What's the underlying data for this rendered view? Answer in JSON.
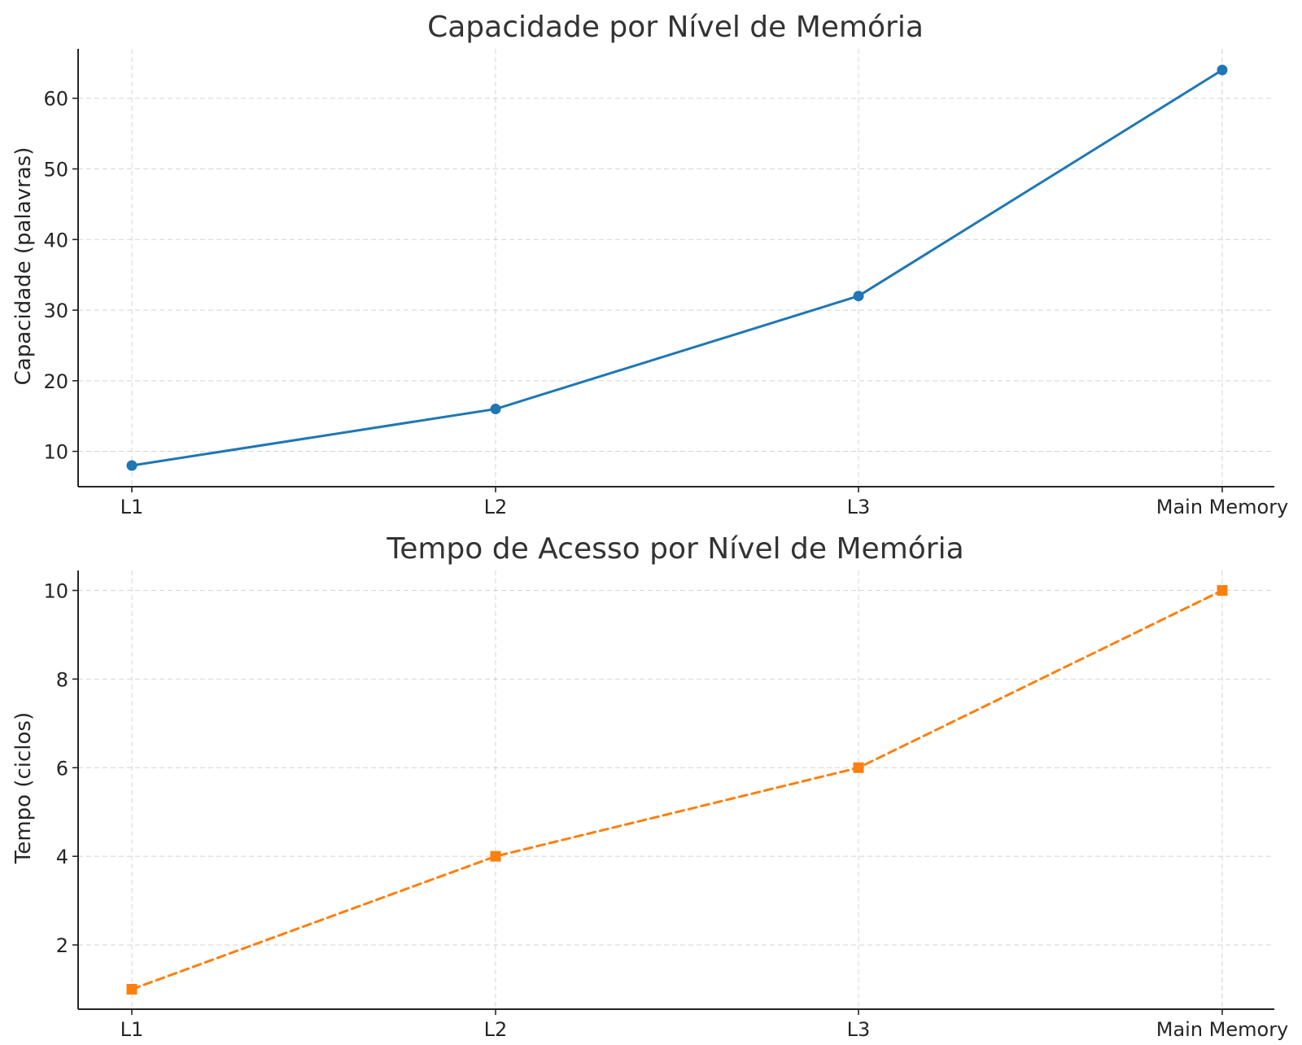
{
  "chart_data": [
    {
      "type": "line",
      "title": "Capacidade por Nível de Memória",
      "xlabel": "",
      "ylabel": "Capacidade (palavras)",
      "categories": [
        "L1",
        "L2",
        "L3",
        "Main Memory"
      ],
      "series": [
        {
          "values": [
            8,
            16,
            32,
            64
          ],
          "color": "#1f77b4",
          "marker": "circle",
          "line_style": "solid"
        }
      ],
      "ylim": [
        5,
        67
      ],
      "yticks": [
        10,
        20,
        30,
        40,
        50,
        60
      ],
      "grid": true,
      "legend": "none"
    },
    {
      "type": "line",
      "title": "Tempo de Acesso por Nível de Memória",
      "xlabel": "",
      "ylabel": "Tempo (ciclos)",
      "categories": [
        "L1",
        "L2",
        "L3",
        "Main Memory"
      ],
      "series": [
        {
          "values": [
            1,
            4,
            6,
            10
          ],
          "color": "#ff7f0e",
          "marker": "square",
          "line_style": "dashed"
        }
      ],
      "ylim": [
        0.55,
        10.45
      ],
      "yticks": [
        2,
        4,
        6,
        8,
        10
      ],
      "grid": true,
      "legend": "none"
    }
  ]
}
